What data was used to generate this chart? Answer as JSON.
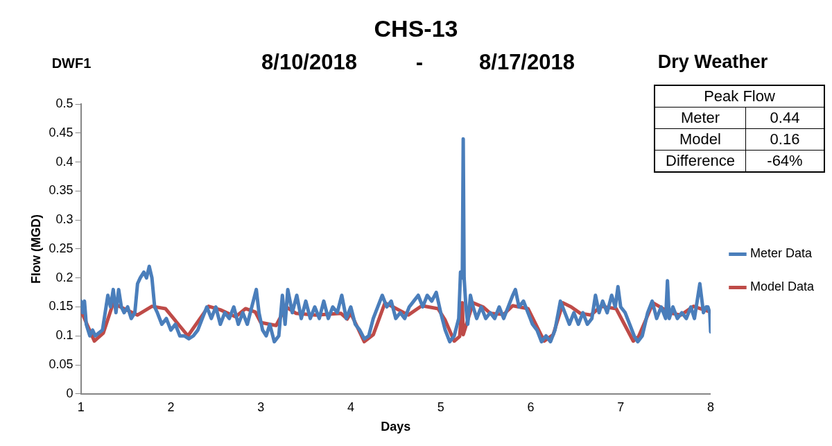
{
  "chart_data": {
    "type": "line",
    "title": "CHS-13",
    "xlabel": "Days",
    "ylabel": "Flow (MGD)",
    "annotations": [
      "DWF1",
      "8/10/2018",
      "-",
      "8/17/2018",
      "Dry Weather",
      "Peak Flow",
      "Meter",
      "0.44",
      "Model",
      "0.16",
      "Difference",
      "-64%"
    ],
    "xlim": [
      1,
      8
    ],
    "xticks": [
      1,
      2,
      3,
      4,
      5,
      6,
      7,
      8
    ],
    "ylim": [
      0,
      0.5
    ],
    "yticks": [
      0,
      0.05,
      0.1,
      0.15,
      0.2,
      0.25,
      0.3,
      0.35,
      0.4,
      0.45,
      0.5
    ],
    "grid": false,
    "legend": "right",
    "marker": "none",
    "line_style": "solid",
    "series": [
      {
        "name": "Meter Data",
        "color": "#4a7ebb",
        "x": [
          1.0,
          1.02,
          1.04,
          1.06,
          1.08,
          1.1,
          1.13,
          1.16,
          1.2,
          1.24,
          1.27,
          1.3,
          1.33,
          1.36,
          1.39,
          1.42,
          1.45,
          1.48,
          1.52,
          1.56,
          1.6,
          1.63,
          1.66,
          1.7,
          1.73,
          1.76,
          1.79,
          1.82,
          1.85,
          1.9,
          1.95,
          2.0,
          2.05,
          2.1,
          2.15,
          2.2,
          2.25,
          2.3,
          2.35,
          2.4,
          2.45,
          2.5,
          2.55,
          2.6,
          2.65,
          2.7,
          2.75,
          2.8,
          2.85,
          2.9,
          2.95,
          2.98,
          3.02,
          3.06,
          3.1,
          3.15,
          3.2,
          3.24,
          3.27,
          3.3,
          3.35,
          3.4,
          3.45,
          3.5,
          3.55,
          3.6,
          3.65,
          3.7,
          3.75,
          3.8,
          3.85,
          3.9,
          3.95,
          4.0,
          4.05,
          4.1,
          4.15,
          4.2,
          4.25,
          4.3,
          4.35,
          4.4,
          4.45,
          4.5,
          4.55,
          4.6,
          4.65,
          4.7,
          4.75,
          4.8,
          4.85,
          4.9,
          4.95,
          5.0,
          5.05,
          5.1,
          5.15,
          5.2,
          5.22,
          5.24,
          5.25,
          5.26,
          5.28,
          5.3,
          5.33,
          5.36,
          5.4,
          5.45,
          5.5,
          5.55,
          5.6,
          5.65,
          5.7,
          5.75,
          5.8,
          5.83,
          5.87,
          5.92,
          5.97,
          6.02,
          6.07,
          6.12,
          6.17,
          6.22,
          6.27,
          6.33,
          6.38,
          6.43,
          6.48,
          6.53,
          6.58,
          6.63,
          6.68,
          6.72,
          6.76,
          6.8,
          6.85,
          6.9,
          6.94,
          6.97,
          7.0,
          7.05,
          7.1,
          7.15,
          7.19,
          7.24,
          7.3,
          7.35,
          7.4,
          7.45,
          7.5,
          7.52,
          7.54,
          7.58,
          7.63,
          7.68,
          7.73,
          7.78,
          7.82,
          7.85,
          7.88,
          7.92,
          7.95,
          7.97,
          7.99,
          8.0
        ],
        "values": [
          0.16,
          0.14,
          0.16,
          0.12,
          0.11,
          0.1,
          0.11,
          0.1,
          0.105,
          0.11,
          0.14,
          0.17,
          0.15,
          0.18,
          0.14,
          0.18,
          0.15,
          0.14,
          0.15,
          0.13,
          0.14,
          0.19,
          0.2,
          0.21,
          0.2,
          0.22,
          0.2,
          0.15,
          0.14,
          0.12,
          0.13,
          0.11,
          0.12,
          0.1,
          0.1,
          0.095,
          0.1,
          0.11,
          0.13,
          0.15,
          0.13,
          0.15,
          0.12,
          0.14,
          0.13,
          0.15,
          0.12,
          0.14,
          0.12,
          0.15,
          0.18,
          0.14,
          0.11,
          0.1,
          0.12,
          0.09,
          0.1,
          0.17,
          0.12,
          0.18,
          0.14,
          0.17,
          0.13,
          0.16,
          0.13,
          0.15,
          0.13,
          0.16,
          0.13,
          0.15,
          0.14,
          0.17,
          0.13,
          0.15,
          0.12,
          0.11,
          0.095,
          0.1,
          0.13,
          0.15,
          0.17,
          0.15,
          0.16,
          0.13,
          0.14,
          0.13,
          0.15,
          0.16,
          0.17,
          0.15,
          0.17,
          0.16,
          0.175,
          0.14,
          0.11,
          0.09,
          0.1,
          0.13,
          0.21,
          0.2,
          0.44,
          0.2,
          0.15,
          0.12,
          0.17,
          0.15,
          0.13,
          0.15,
          0.13,
          0.14,
          0.13,
          0.15,
          0.13,
          0.15,
          0.17,
          0.18,
          0.15,
          0.16,
          0.14,
          0.12,
          0.11,
          0.09,
          0.1,
          0.09,
          0.11,
          0.16,
          0.14,
          0.12,
          0.14,
          0.12,
          0.14,
          0.12,
          0.13,
          0.17,
          0.14,
          0.16,
          0.14,
          0.17,
          0.15,
          0.185,
          0.15,
          0.14,
          0.12,
          0.1,
          0.09,
          0.1,
          0.14,
          0.16,
          0.13,
          0.15,
          0.13,
          0.195,
          0.13,
          0.15,
          0.13,
          0.14,
          0.13,
          0.15,
          0.13,
          0.16,
          0.19,
          0.14,
          0.15,
          0.15,
          0.14,
          0.107
        ]
      },
      {
        "name": "Model Data",
        "color": "#be4b48",
        "x": [
          1.0,
          1.15,
          1.25,
          1.36,
          1.44,
          1.63,
          1.79,
          1.94,
          2.19,
          2.42,
          2.55,
          2.72,
          2.83,
          2.94,
          3.0,
          3.17,
          3.28,
          3.39,
          3.61,
          3.89,
          3.96,
          4.0,
          4.15,
          4.25,
          4.38,
          4.47,
          4.64,
          4.79,
          4.97,
          5.05,
          5.15,
          5.21,
          5.24,
          5.25,
          5.36,
          5.47,
          5.55,
          5.7,
          5.8,
          5.97,
          6.15,
          6.25,
          6.36,
          6.45,
          6.55,
          6.67,
          6.78,
          6.95,
          7.14,
          7.2,
          7.36,
          7.47,
          7.56,
          7.67,
          7.81,
          8.0
        ],
        "values": [
          0.144,
          0.091,
          0.105,
          0.157,
          0.15,
          0.136,
          0.151,
          0.147,
          0.1,
          0.151,
          0.145,
          0.133,
          0.147,
          0.141,
          0.123,
          0.118,
          0.15,
          0.139,
          0.136,
          0.139,
          0.129,
          0.139,
          0.09,
          0.102,
          0.157,
          0.15,
          0.136,
          0.152,
          0.147,
          0.127,
          0.091,
          0.099,
          0.157,
          0.102,
          0.157,
          0.15,
          0.139,
          0.137,
          0.152,
          0.147,
          0.091,
          0.102,
          0.157,
          0.15,
          0.139,
          0.136,
          0.151,
          0.147,
          0.091,
          0.099,
          0.157,
          0.147,
          0.139,
          0.136,
          0.151,
          0.141
        ]
      }
    ]
  }
}
